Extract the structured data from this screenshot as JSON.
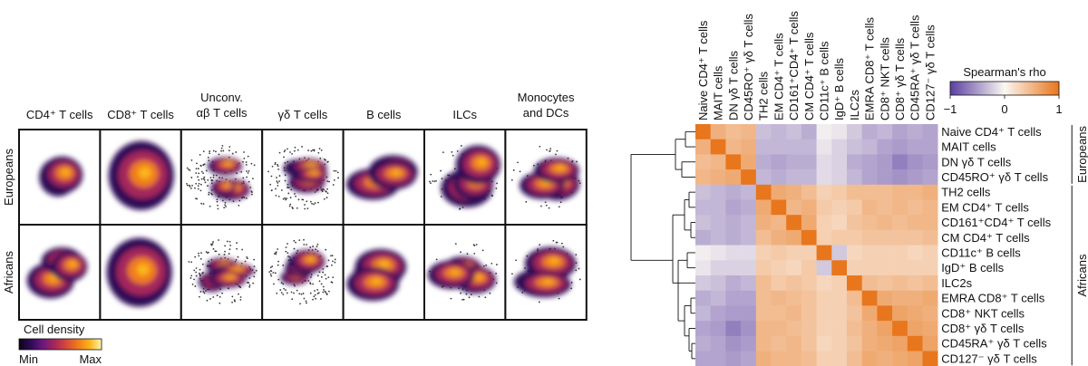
{
  "panel_a": {
    "cell_types": [
      "CD4⁺ T cells",
      "CD8⁺ T cells",
      "Unconv. αβ T cells",
      "γδ T cells",
      "B cells",
      "ILCs",
      "Monocytes and DCs"
    ],
    "populations": [
      "Europeans",
      "Africans"
    ],
    "legend_title": "Cell density",
    "legend_min": "Min",
    "legend_max": "Max",
    "colormap": [
      "#0a0418",
      "#2d0b56",
      "#6a177e",
      "#a4275b",
      "#d4483b",
      "#f07c1c",
      "#fbb41a",
      "#fcf7b0"
    ]
  },
  "chart_data": {
    "type": "heatmap",
    "title": "",
    "colorbar_label": "Spearman's rho",
    "colorbar_ticks": [
      "−1",
      "0",
      "1"
    ],
    "vmin": -1,
    "vmax": 1,
    "colors": {
      "neg": "#5a3fa0",
      "mid": "#faf7f3",
      "pos": "#e8761c"
    },
    "labels": [
      "Naive CD4⁺ T cells",
      "MAIT cells",
      "DN γδ T cells",
      "CD45RO⁺ γδ T cells",
      "TH2 cells",
      "EM CD4⁺ T cells",
      "CD161⁺CD4⁺ T cells",
      "CM CD4⁺ T cells",
      "CD11c⁺ B cells",
      "IgD⁺ B cells",
      "ILC2s",
      "EMRA CD8⁺ T cells",
      "CD8⁺ NKT cells",
      "CD8⁺ γδ T cells",
      "CD45RA⁺ γδ T cells",
      "CD127⁻ γδ T cells"
    ],
    "groups": [
      {
        "name": "Europeans",
        "rows": [
          0,
          3
        ]
      },
      {
        "name": "Africans",
        "rows": [
          4,
          15
        ]
      }
    ],
    "matrix": [
      [
        1.0,
        0.55,
        0.45,
        0.5,
        -0.3,
        -0.35,
        -0.3,
        -0.4,
        -0.05,
        -0.1,
        -0.25,
        -0.4,
        -0.35,
        -0.45,
        -0.4,
        -0.45
      ],
      [
        0.55,
        1.0,
        0.5,
        0.55,
        -0.35,
        -0.35,
        -0.35,
        -0.35,
        -0.1,
        -0.2,
        -0.3,
        -0.35,
        -0.45,
        -0.5,
        -0.45,
        -0.45
      ],
      [
        0.45,
        0.5,
        1.0,
        0.6,
        -0.4,
        -0.45,
        -0.4,
        -0.4,
        -0.15,
        -0.2,
        -0.4,
        -0.45,
        -0.5,
        -0.65,
        -0.55,
        -0.5
      ],
      [
        0.5,
        0.55,
        0.6,
        1.0,
        -0.35,
        -0.4,
        -0.35,
        -0.35,
        -0.15,
        -0.2,
        -0.35,
        -0.45,
        -0.5,
        -0.55,
        -0.5,
        -0.45
      ],
      [
        -0.3,
        -0.35,
        -0.4,
        -0.35,
        1.0,
        0.6,
        0.55,
        0.45,
        0.3,
        0.35,
        0.45,
        0.45,
        0.45,
        0.5,
        0.5,
        0.55
      ],
      [
        -0.35,
        -0.35,
        -0.45,
        -0.4,
        0.6,
        1.0,
        0.5,
        0.55,
        0.35,
        0.3,
        0.35,
        0.5,
        0.45,
        0.5,
        0.45,
        0.5
      ],
      [
        -0.3,
        -0.35,
        -0.4,
        -0.35,
        0.55,
        0.5,
        1.0,
        0.6,
        0.3,
        0.25,
        0.4,
        0.45,
        0.5,
        0.45,
        0.5,
        0.5
      ],
      [
        -0.4,
        -0.35,
        -0.4,
        -0.35,
        0.45,
        0.55,
        0.6,
        1.0,
        0.3,
        0.35,
        0.35,
        0.4,
        0.4,
        0.4,
        0.4,
        0.45
      ],
      [
        -0.05,
        -0.1,
        -0.15,
        -0.15,
        0.3,
        0.35,
        0.3,
        0.3,
        1.0,
        -0.25,
        0.25,
        0.3,
        0.3,
        0.3,
        0.25,
        0.3
      ],
      [
        -0.1,
        -0.2,
        -0.2,
        -0.2,
        0.35,
        0.3,
        0.25,
        0.35,
        -0.25,
        1.0,
        0.3,
        0.3,
        0.3,
        0.3,
        0.3,
        0.3
      ],
      [
        -0.25,
        -0.3,
        -0.4,
        -0.35,
        0.45,
        0.35,
        0.4,
        0.35,
        0.25,
        0.3,
        1.0,
        0.45,
        0.4,
        0.45,
        0.4,
        0.45
      ],
      [
        -0.4,
        -0.35,
        -0.45,
        -0.45,
        0.45,
        0.5,
        0.45,
        0.4,
        0.3,
        0.3,
        0.45,
        1.0,
        0.6,
        0.55,
        0.55,
        0.6
      ],
      [
        -0.35,
        -0.45,
        -0.5,
        -0.5,
        0.45,
        0.45,
        0.5,
        0.4,
        0.3,
        0.3,
        0.4,
        0.6,
        1.0,
        0.65,
        0.6,
        0.55
      ],
      [
        -0.45,
        -0.5,
        -0.65,
        -0.55,
        0.5,
        0.5,
        0.45,
        0.4,
        0.3,
        0.3,
        0.45,
        0.55,
        0.65,
        1.0,
        0.65,
        0.6
      ],
      [
        -0.4,
        -0.45,
        -0.55,
        -0.5,
        0.5,
        0.45,
        0.5,
        0.4,
        0.25,
        0.3,
        0.4,
        0.55,
        0.6,
        0.65,
        1.0,
        0.65
      ],
      [
        -0.45,
        -0.45,
        -0.5,
        -0.45,
        0.55,
        0.5,
        0.5,
        0.45,
        0.3,
        0.3,
        0.45,
        0.6,
        0.55,
        0.6,
        0.65,
        1.0
      ]
    ]
  }
}
